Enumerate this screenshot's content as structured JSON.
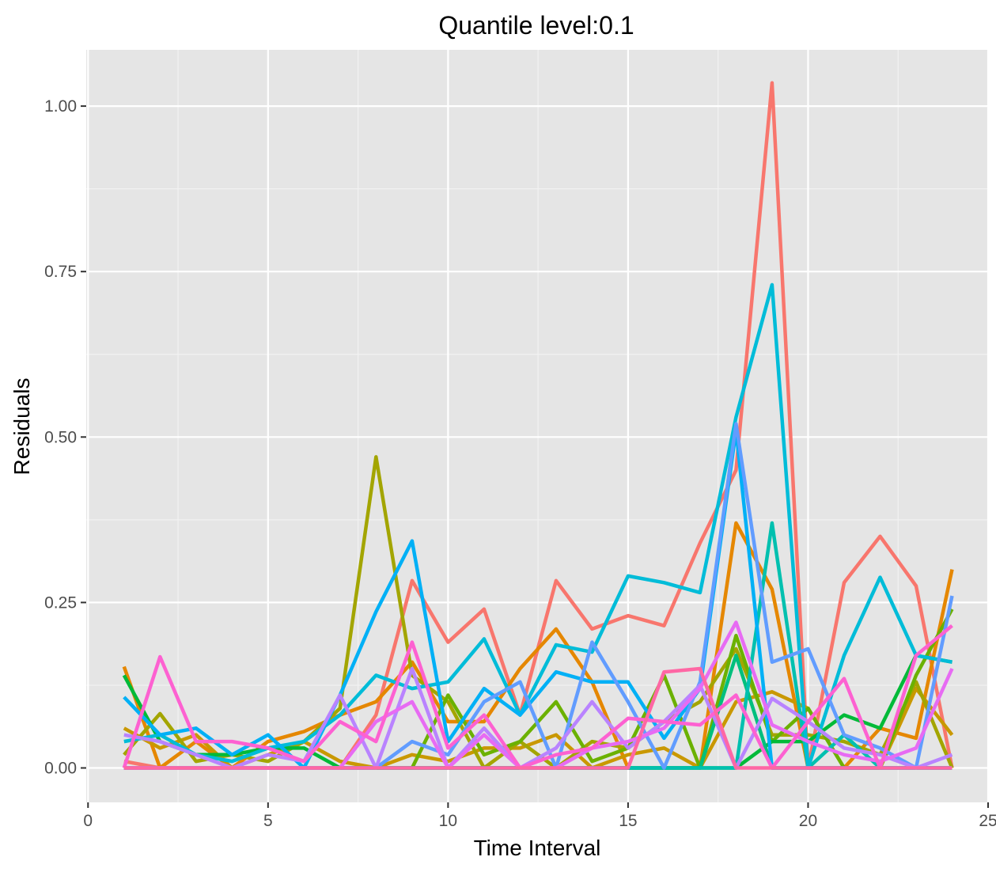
{
  "chart_data": {
    "type": "line",
    "title": "Quantile level:0.1",
    "xlabel": "Time Interval",
    "ylabel": "Residuals",
    "xlim": [
      -0.05,
      25
    ],
    "ylim": [
      -0.052,
      1.085
    ],
    "x_ticks": [
      0,
      5,
      10,
      15,
      20,
      25
    ],
    "x_tick_labels": [
      "0",
      "5",
      "10",
      "15",
      "20",
      "25"
    ],
    "y_ticks": [
      0,
      0.25,
      0.5,
      0.75,
      1.0
    ],
    "y_tick_labels": [
      "0.00",
      "0.25",
      "0.50",
      "0.75",
      "1.00"
    ],
    "grid": true,
    "panel_background": "#e5e5e5",
    "legend": "none",
    "x": [
      1,
      2,
      3,
      4,
      5,
      6,
      7,
      8,
      9,
      10,
      11,
      12,
      13,
      14,
      15,
      16,
      17,
      18,
      19,
      20,
      21,
      22,
      23,
      24
    ],
    "series": [
      {
        "color": "#f8766d",
        "values": [
          0.01,
          0.0,
          0.0,
          0.0,
          0.0,
          0.0,
          0.0,
          0.08,
          0.283,
          0.19,
          0.24,
          0.08,
          0.283,
          0.21,
          0.23,
          0.215,
          0.34,
          0.45,
          1.035,
          0.0,
          0.28,
          0.35,
          0.275,
          0.0
        ]
      },
      {
        "color": "#e58700",
        "values": [
          0.153,
          0.0,
          0.04,
          0.0,
          0.04,
          0.055,
          0.08,
          0.1,
          0.16,
          0.07,
          0.07,
          0.15,
          0.21,
          0.13,
          0.0,
          0.0,
          0.0,
          0.37,
          0.27,
          0.0,
          0.0,
          0.06,
          0.045,
          0.3
        ]
      },
      {
        "color": "#c99800",
        "values": [
          0.06,
          0.03,
          0.05,
          0.0,
          0.02,
          0.04,
          0.01,
          0.0,
          0.02,
          0.01,
          0.03,
          0.03,
          0.05,
          0.0,
          0.02,
          0.03,
          0.0,
          0.1,
          0.115,
          0.09,
          0.0,
          0.0,
          0.12,
          0.05
        ]
      },
      {
        "color": "#a3a500",
        "values": [
          0.02,
          0.082,
          0.01,
          0.02,
          0.01,
          0.04,
          0.09,
          0.47,
          0.14,
          0.1,
          0.0,
          0.04,
          0.0,
          0.04,
          0.03,
          0.07,
          0.1,
          0.18,
          0.05,
          0.05,
          0.04,
          0.02,
          0.13,
          0.0
        ]
      },
      {
        "color": "#6bb100",
        "values": [
          0.0,
          0.0,
          0.0,
          0.0,
          0.0,
          0.0,
          0.0,
          0.0,
          0.0,
          0.11,
          0.02,
          0.04,
          0.1,
          0.01,
          0.03,
          0.14,
          0.0,
          0.2,
          0.04,
          0.09,
          0.0,
          0.0,
          0.14,
          0.24
        ]
      },
      {
        "color": "#00ba38",
        "values": [
          0.14,
          0.04,
          0.02,
          0.02,
          0.03,
          0.03,
          0.0,
          0.0,
          0.0,
          0.0,
          0.0,
          0.0,
          0.0,
          0.0,
          0.0,
          0.0,
          0.0,
          0.0,
          0.04,
          0.04,
          0.08,
          0.06,
          0.17,
          0.16
        ]
      },
      {
        "color": "#00bf7d",
        "values": [
          0.0,
          0.0,
          0.0,
          0.0,
          0.0,
          0.0,
          0.0,
          0.0,
          0.0,
          0.0,
          0.0,
          0.0,
          0.0,
          0.0,
          0.0,
          0.0,
          0.0,
          0.17,
          0.0,
          0.0,
          0.0,
          0.0,
          0.0,
          0.0
        ]
      },
      {
        "color": "#00c0af",
        "values": [
          0.0,
          0.0,
          0.0,
          0.0,
          0.0,
          0.0,
          0.0,
          0.0,
          0.0,
          0.0,
          0.0,
          0.0,
          0.0,
          0.0,
          0.0,
          0.0,
          0.0,
          0.0,
          0.37,
          0.0,
          0.05,
          0.0,
          0.0,
          0.0
        ]
      },
      {
        "color": "#00bcd8",
        "values": [
          0.04,
          0.05,
          0.02,
          0.01,
          0.03,
          0.04,
          0.08,
          0.14,
          0.12,
          0.13,
          0.195,
          0.08,
          0.186,
          0.175,
          0.29,
          0.28,
          0.265,
          0.53,
          0.73,
          0.0,
          0.17,
          0.288,
          0.17,
          0.16
        ]
      },
      {
        "color": "#00b0f6",
        "values": [
          0.107,
          0.05,
          0.06,
          0.02,
          0.05,
          0.0,
          0.11,
          0.236,
          0.343,
          0.04,
          0.12,
          0.08,
          0.145,
          0.13,
          0.13,
          0.045,
          0.12,
          0.51,
          0.0,
          0.0,
          0.0,
          0.0,
          0.0,
          0.0
        ]
      },
      {
        "color": "#619cff",
        "values": [
          0.0,
          0.0,
          0.0,
          0.0,
          0.0,
          0.0,
          0.0,
          0.0,
          0.04,
          0.02,
          0.1,
          0.13,
          0.0,
          0.19,
          0.1,
          0.0,
          0.13,
          0.52,
          0.16,
          0.18,
          0.05,
          0.03,
          0.0,
          0.26
        ]
      },
      {
        "color": "#b983ff",
        "values": [
          0.05,
          0.04,
          0.02,
          0.0,
          0.02,
          0.01,
          0.11,
          0.0,
          0.15,
          0.0,
          0.06,
          0.0,
          0.03,
          0.1,
          0.03,
          0.07,
          0.125,
          0.0,
          0.105,
          0.07,
          0.03,
          0.02,
          0.0,
          0.02
        ]
      },
      {
        "color": "#e76bf3",
        "values": [
          0.0,
          0.0,
          0.0,
          0.0,
          0.0,
          0.0,
          0.0,
          0.07,
          0.1,
          0.0,
          0.05,
          0.0,
          0.0,
          0.03,
          0.04,
          0.06,
          0.12,
          0.22,
          0.065,
          0.04,
          0.02,
          0.01,
          0.03,
          0.15
        ]
      },
      {
        "color": "#fd61d1",
        "values": [
          0.0,
          0.168,
          0.04,
          0.04,
          0.03,
          0.01,
          0.07,
          0.04,
          0.19,
          0.03,
          0.08,
          0.0,
          0.02,
          0.03,
          0.075,
          0.07,
          0.065,
          0.11,
          0.0,
          0.07,
          0.135,
          0.0,
          0.17,
          0.215
        ]
      },
      {
        "color": "#ff67a4",
        "values": [
          0.0,
          0.0,
          0.0,
          0.0,
          0.0,
          0.0,
          0.0,
          0.0,
          0.0,
          0.0,
          0.0,
          0.0,
          0.0,
          0.0,
          0.0,
          0.145,
          0.15,
          0.0,
          0.0,
          0.0,
          0.0,
          0.0,
          0.0,
          0.0
        ]
      }
    ]
  }
}
